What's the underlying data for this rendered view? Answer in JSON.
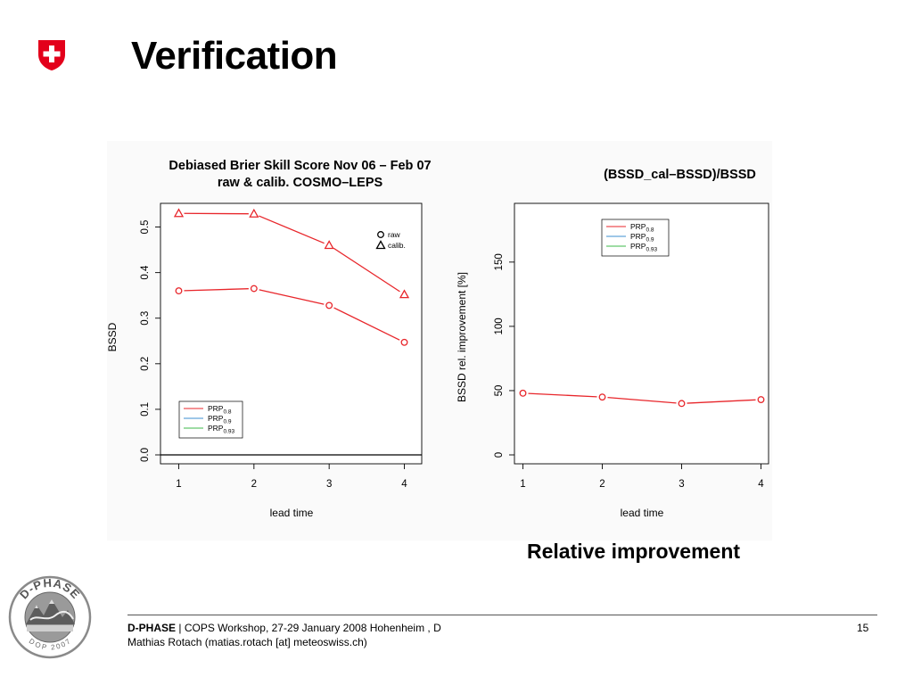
{
  "slide": {
    "title": "Verification",
    "caption": "Relative improvement",
    "page_number": "15"
  },
  "footer": {
    "org": "D-PHASE",
    "separator": " | ",
    "event": "COPS Workshop, 27-29 January 2008 Hohenheim , D",
    "author": "Mathias Rotach (matias.rotach [at] meteoswiss.ch)"
  },
  "logos": {
    "swiss_flag": {
      "icon": "swiss-cross-shield-icon",
      "color": "#e3001b"
    },
    "dphase": {
      "icon": "dphase-badge-icon",
      "top_text": "D-PHASE",
      "bottom_text": "DOP 2007"
    }
  },
  "colors": {
    "series_red": "#e8262b",
    "series_blue": "#3d8fd1",
    "series_green": "#3cb84a",
    "axis": "#000000"
  },
  "chart_data": [
    {
      "type": "line",
      "title": "Debiased Brier Skill Score Nov 06 – Feb 07",
      "subtitle": "raw & calib. COSMO–LEPS",
      "xlabel": "lead time",
      "ylabel": "BSSD",
      "x": [
        1,
        2,
        3,
        4
      ],
      "xticks": [
        "1",
        "2",
        "3",
        "4"
      ],
      "yticks": [
        "0.0",
        "0.1",
        "0.2",
        "0.3",
        "0.4",
        "0.5"
      ],
      "ylim": [
        0,
        0.55
      ],
      "series": [
        {
          "name": "raw",
          "marker": "circle",
          "color": "#e8262b",
          "values": [
            0.36,
            0.365,
            0.328,
            0.247
          ]
        },
        {
          "name": "calib.",
          "marker": "triangle",
          "color": "#e8262b",
          "values": [
            0.53,
            0.529,
            0.46,
            0.352
          ]
        }
      ],
      "marker_legend": [
        {
          "marker": "circle",
          "label": "raw"
        },
        {
          "marker": "triangle",
          "label": "calib."
        }
      ],
      "legend": [
        {
          "base": "PRP",
          "sub": "0.8",
          "color": "#e8262b"
        },
        {
          "base": "PRP",
          "sub": "0.9",
          "color": "#3d8fd1"
        },
        {
          "base": "PRP",
          "sub": "0.93",
          "color": "#3cb84a"
        }
      ],
      "legend_position": "bottom-left",
      "baseline": 0
    },
    {
      "type": "line",
      "title": "(BSSD_cal–BSSD)/BSSD",
      "xlabel": "lead time",
      "ylabel": "BSSD rel. improvement [%]",
      "x": [
        1,
        2,
        3,
        4
      ],
      "xticks": [
        "1",
        "2",
        "3",
        "4"
      ],
      "yticks": [
        "0",
        "50",
        "100",
        "150"
      ],
      "ylim": [
        0,
        195
      ],
      "series": [
        {
          "name": "",
          "marker": "circle",
          "color": "#e8262b",
          "values": [
            48,
            45,
            40,
            43
          ]
        }
      ],
      "legend": [
        {
          "base": "PRP",
          "sub": "0.8",
          "color": "#e8262b"
        },
        {
          "base": "PRP",
          "sub": "0.9",
          "color": "#3d8fd1"
        },
        {
          "base": "PRP",
          "sub": "0.93",
          "color": "#3cb84a"
        }
      ],
      "legend_position": "top-center"
    }
  ]
}
